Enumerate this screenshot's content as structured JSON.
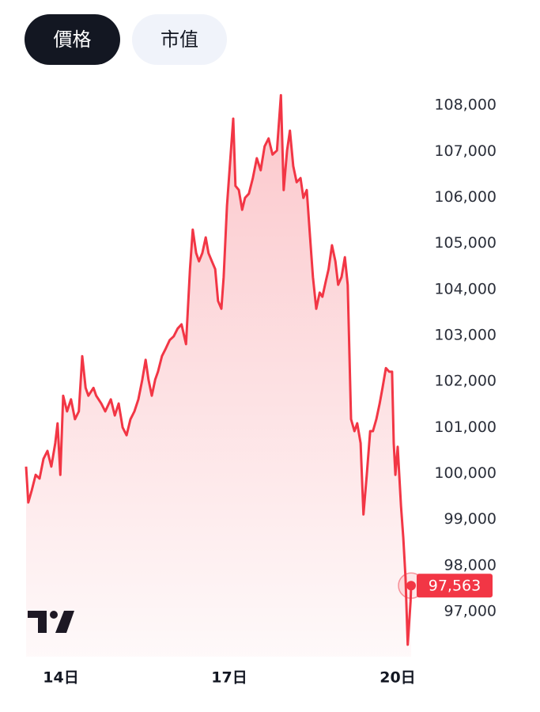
{
  "tabs": [
    {
      "label": "價格",
      "selected": true
    },
    {
      "label": "市值",
      "selected": false
    }
  ],
  "chart_data": {
    "type": "area",
    "color": "#f23645",
    "x": [
      13.38,
      13.42,
      13.48,
      13.55,
      13.62,
      13.69,
      13.76,
      13.83,
      13.9,
      13.94,
      13.99,
      14.04,
      14.11,
      14.18,
      14.25,
      14.32,
      14.38,
      14.44,
      14.49,
      14.58,
      14.63,
      14.72,
      14.79,
      14.89,
      14.96,
      15.03,
      15.1,
      15.17,
      15.24,
      15.31,
      15.38,
      15.45,
      15.51,
      15.56,
      15.62,
      15.68,
      15.73,
      15.8,
      15.87,
      15.94,
      16.01,
      16.08,
      16.15,
      16.23,
      16.3,
      16.35,
      16.41,
      16.46,
      16.52,
      16.58,
      16.63,
      16.69,
      16.75,
      16.8,
      16.86,
      16.9,
      16.96,
      17.01,
      17.07,
      17.11,
      17.17,
      17.23,
      17.28,
      17.35,
      17.42,
      17.49,
      17.56,
      17.63,
      17.7,
      17.77,
      17.85,
      17.92,
      17.97,
      18.03,
      18.08,
      18.14,
      18.2,
      18.27,
      18.32,
      18.38,
      18.44,
      18.49,
      18.55,
      18.61,
      18.66,
      18.72,
      18.77,
      18.83,
      18.89,
      18.94,
      19.0,
      19.06,
      19.11,
      19.17,
      19.23,
      19.28,
      19.34,
      19.39,
      19.45,
      19.51,
      19.56,
      19.62,
      19.68,
      19.73,
      19.79,
      19.85,
      19.9,
      19.93,
      19.96,
      20.0,
      20.06,
      20.1,
      20.14,
      20.18,
      20.23,
      20.24
    ],
    "values": [
      100150,
      99370,
      99630,
      99970,
      99890,
      100320,
      100490,
      100150,
      100660,
      101090,
      99970,
      101690,
      101350,
      101610,
      101180,
      101350,
      102550,
      101860,
      101690,
      101860,
      101690,
      101520,
      101350,
      101610,
      101260,
      101520,
      101000,
      100830,
      101180,
      101350,
      101610,
      102040,
      102470,
      102040,
      101690,
      102040,
      102210,
      102550,
      102720,
      102900,
      102980,
      103150,
      103240,
      102810,
      104440,
      105300,
      104790,
      104610,
      104790,
      105130,
      104790,
      104610,
      104440,
      103750,
      103580,
      104270,
      105820,
      106680,
      107710,
      106250,
      106160,
      105730,
      105990,
      106080,
      106420,
      106850,
      106590,
      107110,
      107280,
      106930,
      107020,
      108220,
      106160,
      107020,
      107450,
      106680,
      106330,
      106420,
      105990,
      106160,
      105130,
      104270,
      103580,
      103930,
      103840,
      104180,
      104440,
      104960,
      104610,
      104100,
      104270,
      104700,
      104100,
      101180,
      100920,
      101090,
      100660,
      99110,
      99970,
      100920,
      100920,
      101180,
      101520,
      101860,
      102290,
      102210,
      102210,
      100660,
      99970,
      100580,
      99290,
      98600,
      97740,
      96280,
      97220,
      97563
    ],
    "xlim": [
      13.38,
      20.24
    ],
    "xticks": [
      {
        "value": 14,
        "label": "14日"
      },
      {
        "value": 17,
        "label": "17日"
      },
      {
        "value": 20,
        "label": "20日"
      }
    ],
    "ylim": [
      96020,
      108570
    ],
    "yticks": [
      {
        "value": 97000,
        "label": "97,000"
      },
      {
        "value": 98000,
        "label": "98,000"
      },
      {
        "value": 99000,
        "label": "99,000"
      },
      {
        "value": 100000,
        "label": "100,000"
      },
      {
        "value": 101000,
        "label": "101,000"
      },
      {
        "value": 102000,
        "label": "102,000"
      },
      {
        "value": 103000,
        "label": "103,000"
      },
      {
        "value": 104000,
        "label": "104,000"
      },
      {
        "value": 105000,
        "label": "105,000"
      },
      {
        "value": 106000,
        "label": "106,000"
      },
      {
        "value": 107000,
        "label": "107,000"
      },
      {
        "value": 108000,
        "label": "108,000"
      }
    ],
    "annotations": [
      {
        "value": 97563,
        "label": "97,563"
      }
    ]
  }
}
